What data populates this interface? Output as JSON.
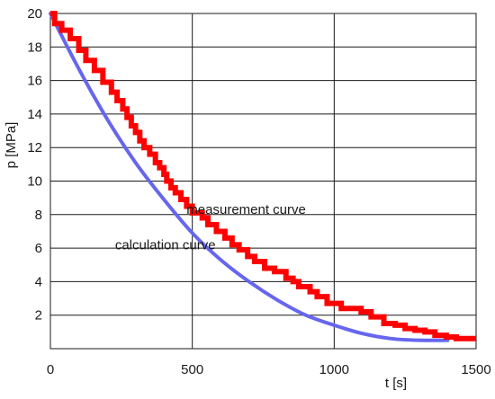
{
  "chart_data": {
    "type": "line",
    "title": "",
    "xlabel": "t [s]",
    "ylabel": "p [MPa]",
    "xlim": [
      0,
      1500
    ],
    "ylim": [
      0,
      20
    ],
    "x_ticks": [
      0,
      500,
      1000,
      1500
    ],
    "y_ticks": [
      2,
      4,
      6,
      8,
      10,
      12,
      14,
      16,
      18,
      20
    ],
    "x_tick_labels": [
      "0",
      "500",
      "1000",
      "1500"
    ],
    "y_tick_labels": [
      "2",
      "4",
      "6",
      "8",
      "10",
      "12",
      "14",
      "16",
      "18",
      "20"
    ],
    "grid": true,
    "legend": "none",
    "series": [
      {
        "name": "measurement curve",
        "color": "#ff0000",
        "style": "step",
        "x": [
          0,
          15,
          40,
          70,
          100,
          125,
          155,
          185,
          215,
          235,
          255,
          270,
          285,
          300,
          315,
          330,
          350,
          370,
          385,
          400,
          410,
          425,
          440,
          460,
          480,
          500,
          535,
          555,
          585,
          615,
          640,
          665,
          695,
          720,
          755,
          790,
          830,
          855,
          875,
          915,
          940,
          975,
          1025,
          1095,
          1130,
          1175,
          1215,
          1250,
          1285,
          1320,
          1355,
          1395,
          1430,
          1500
        ],
        "y": [
          20,
          19.4,
          19,
          18.5,
          17.8,
          17.2,
          16.6,
          15.9,
          15.3,
          14.8,
          14.3,
          13.8,
          13.3,
          12.9,
          12.4,
          12,
          11.6,
          11.1,
          10.8,
          10.4,
          10,
          9.6,
          9.3,
          8.9,
          8.5,
          8.1,
          7.8,
          7.4,
          7,
          6.6,
          6.2,
          5.9,
          5.5,
          5.2,
          4.8,
          4.6,
          4.2,
          4,
          3.7,
          3.4,
          3.1,
          2.7,
          2.4,
          2.2,
          1.9,
          1.5,
          1.4,
          1.2,
          1.1,
          1.0,
          0.8,
          0.7,
          0.6,
          0.6
        ]
      },
      {
        "name": "calculation curve",
        "color": "#6666ee",
        "style": "smooth",
        "x": [
          0,
          100,
          200,
          300,
          400,
          500,
          600,
          700,
          800,
          900,
          1000,
          1100,
          1200,
          1300,
          1400
        ],
        "y": [
          20,
          16.7,
          13.7,
          11.1,
          8.9,
          6.9,
          5.3,
          4.0,
          2.9,
          2.0,
          1.4,
          0.9,
          0.6,
          0.5,
          0.5
        ]
      }
    ],
    "annotations": [
      {
        "text": "measurement curve",
        "x": 690,
        "y": 8.3
      },
      {
        "text": "calculation curve",
        "x": 405,
        "y": 6.2
      }
    ]
  }
}
